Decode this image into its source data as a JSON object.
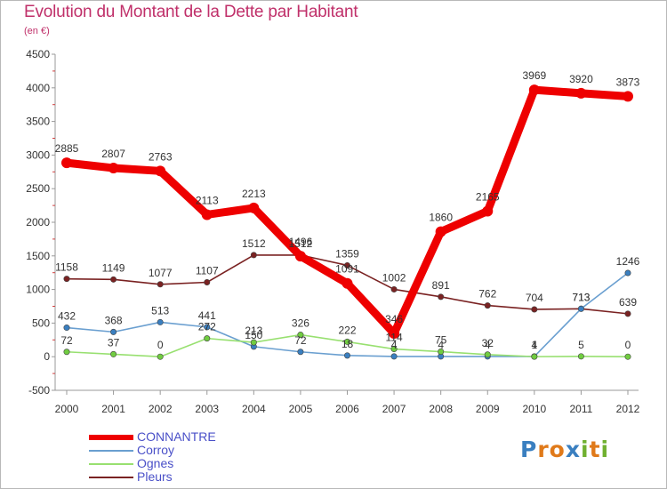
{
  "header": {
    "title": "Evolution du Montant de la Dette par Habitant",
    "subtitle": "(en €)"
  },
  "chart_data": {
    "type": "line",
    "title": "Evolution du Montant de la Dette par Habitant",
    "subtitle": "(en €)",
    "xlabel": "",
    "ylabel": "",
    "ylim": [
      -500,
      4500
    ],
    "yticks": [
      -500,
      0,
      500,
      1000,
      1500,
      2000,
      2500,
      3000,
      3500,
      4000,
      4500
    ],
    "x": [
      2000,
      2001,
      2002,
      2003,
      2004,
      2005,
      2006,
      2007,
      2008,
      2009,
      2010,
      2011,
      2012
    ],
    "grid": false,
    "legend_position": "bottom-left",
    "series": [
      {
        "name": "Pleurs",
        "color": "#7a2222",
        "marker": "#7a2222",
        "values": [
          1158,
          1149,
          1077,
          1107,
          1512,
          1512,
          1359,
          1002,
          891,
          762,
          704,
          713,
          639
        ]
      },
      {
        "name": "Corroy",
        "color": "#6a9fd0",
        "marker": "#3a7fc0",
        "values": [
          432,
          368,
          513,
          441,
          150,
          72,
          18,
          4,
          4,
          4,
          4,
          713,
          1246
        ]
      },
      {
        "name": "Ognes",
        "color": "#98e070",
        "marker": "#70cc40",
        "values": [
          72,
          37,
          0,
          272,
          213,
          326,
          222,
          114,
          75,
          32,
          1,
          5,
          0
        ]
      },
      {
        "name": "CONNANTRE",
        "color": "#ee0000",
        "marker": "#ee0000",
        "values": [
          2885,
          2807,
          2763,
          2113,
          2213,
          1496,
          1091,
          346,
          1860,
          2165,
          3969,
          3920,
          3873
        ]
      }
    ],
    "labels": {
      "CONNANTRE": [
        "2885",
        "2807",
        "2763",
        "2113",
        "2213",
        "1496",
        "1091",
        "346",
        "1860",
        "2165",
        "3969",
        "3920",
        "3873"
      ],
      "Pleurs": [
        "1158",
        "1149",
        "1077",
        "1107",
        "1512",
        "1512",
        "1359",
        "1002",
        "891",
        "762",
        "704",
        "713",
        "639"
      ],
      "Corroy": [
        "432",
        "368",
        "513",
        "441",
        "150",
        "72",
        "18",
        "4",
        "4",
        "4",
        "4",
        "713",
        "1246"
      ],
      "Ognes": [
        "72",
        "37",
        "0",
        "272",
        "213",
        "326",
        "222",
        "114",
        "75",
        "32",
        "1",
        "5",
        "0"
      ]
    }
  },
  "legend": {
    "items": [
      {
        "label": "CONNANTRE",
        "color": "#ee0000",
        "thickness": 6
      },
      {
        "label": "Corroy",
        "color": "#6a9fd0",
        "thickness": 2
      },
      {
        "label": "Ognes",
        "color": "#98e070",
        "thickness": 2
      },
      {
        "label": "Pleurs",
        "color": "#7a2222",
        "thickness": 2
      }
    ]
  },
  "logo": {
    "text": "Proxiti",
    "letters": [
      "P",
      "r",
      "o",
      "x",
      "i",
      "t",
      "i"
    ],
    "colors": [
      "#3a7fc0",
      "#e07a1a",
      "#e07a1a",
      "#3a7fc0",
      "#70b030",
      "#e07a1a",
      "#70b030"
    ]
  }
}
